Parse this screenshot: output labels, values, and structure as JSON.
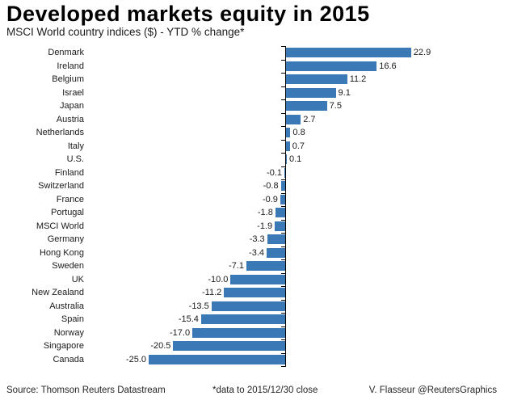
{
  "header": {
    "title": "Developed markets equity in 2015",
    "subtitle": "MSCI World country indices ($) - YTD % change*"
  },
  "footer": {
    "source": "Source: Thomson Reuters Datastream",
    "note": "*data to 2015/12/30 close",
    "credit": "V. Flasseur @ReutersGraphics"
  },
  "colors": {
    "bar": "#3b79b6",
    "axis": "#000000",
    "text": "#1a1a1a"
  },
  "chart_data": {
    "type": "bar",
    "orientation": "horizontal",
    "title": "Developed markets equity in 2015",
    "subtitle": "MSCI World country indices ($) - YTD % change*",
    "value_unit": "YTD % change ($)",
    "categories": [
      "Denmark",
      "Ireland",
      "Belgium",
      "Israel",
      "Japan",
      "Austria",
      "Netherlands",
      "Italy",
      "U.S.",
      "Finland",
      "Switzerland",
      "France",
      "Portugal",
      "MSCI World",
      "Germany",
      "Hong Kong",
      "Sweden",
      "UK",
      "New Zealand",
      "Australia",
      "Spain",
      "Norway",
      "Singapore",
      "Canada"
    ],
    "values": [
      22.9,
      16.6,
      11.2,
      9.1,
      7.5,
      2.7,
      0.8,
      0.7,
      0.1,
      -0.1,
      -0.8,
      -0.9,
      -1.8,
      -1.9,
      -3.3,
      -3.4,
      -7.1,
      -10.0,
      -11.2,
      -13.5,
      -15.4,
      -17.0,
      -20.5,
      -25.0
    ],
    "data_labels": true,
    "xlim": [
      -25.0,
      22.9
    ],
    "grid": false,
    "legend": false,
    "sorted": "descending"
  }
}
